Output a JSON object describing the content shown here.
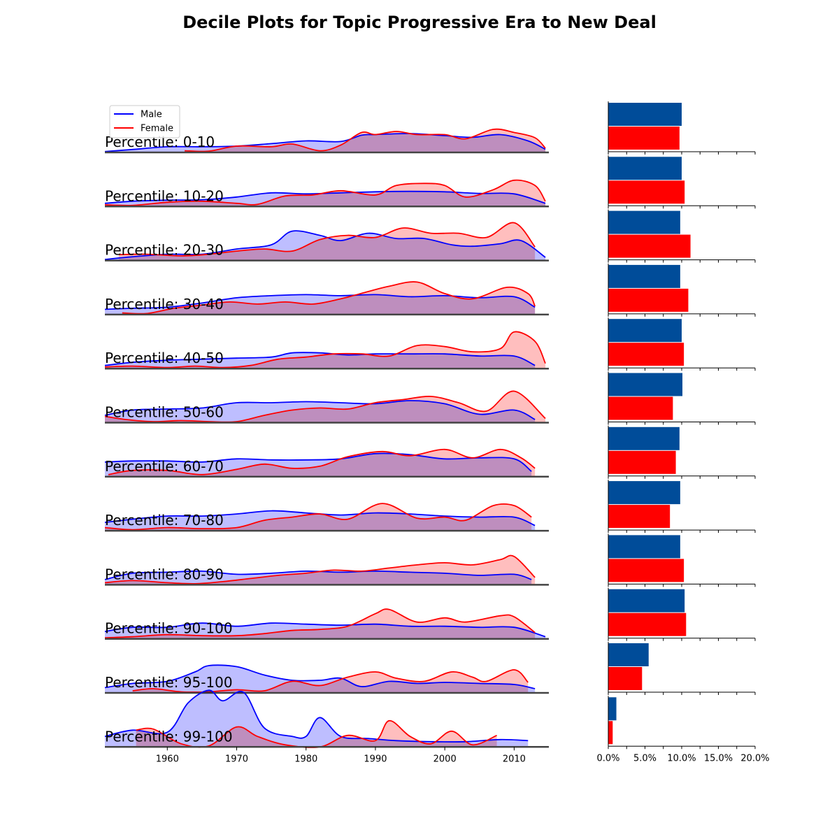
{
  "title": "Decile Plots for Topic Progressive Era to New Deal",
  "chart_data": {
    "type": "area",
    "title": "Decile Plots for Topic Progressive Era to New Deal",
    "legend": {
      "placement": "top-left",
      "entries": [
        "Male",
        "Female"
      ]
    },
    "colors": {
      "male_line": "#0000ff",
      "male_fill": "#bbbbff",
      "female_line": "#ff0000",
      "female_fill": "#ffbbbb",
      "male_bar": "#004c99",
      "female_bar": "#ff0000",
      "baseline": "#444444"
    },
    "x_axis": {
      "ticks": [
        1960,
        1970,
        1980,
        1990,
        2000,
        2010
      ],
      "range": [
        1951,
        2015
      ]
    },
    "bar_axis": {
      "ticks": [
        "0.0%",
        "5.0%",
        "10.0%",
        "15.0%",
        "20.0%"
      ],
      "range": [
        0,
        20
      ]
    },
    "series_names": [
      "Male",
      "Female"
    ],
    "rows": [
      {
        "label": "Percentile: 0-10",
        "male": {
          "x": [
            1951,
            1955,
            1960,
            1965,
            1970,
            1975,
            1980,
            1985,
            1988,
            1990,
            1995,
            2000,
            2004,
            2008,
            2012,
            2014.5
          ],
          "y": [
            0.04,
            0.14,
            0.27,
            0.27,
            0.3,
            0.42,
            0.55,
            0.52,
            0.82,
            0.85,
            0.9,
            0.8,
            0.72,
            0.85,
            0.55,
            0.15
          ]
        },
        "female": {
          "x": [
            1962.5,
            1966,
            1970,
            1975,
            1978,
            1982,
            1985,
            1988,
            1990,
            1993,
            1996,
            2000,
            2003,
            2007,
            2010,
            2013,
            2014.5
          ],
          "y": [
            0.08,
            0.06,
            0.3,
            0.27,
            0.4,
            0.08,
            0.35,
            0.95,
            0.85,
            1.0,
            0.85,
            0.85,
            0.65,
            1.1,
            0.95,
            0.7,
            0.2
          ]
        },
        "bar_male": 10.0,
        "bar_female": 9.7
      },
      {
        "label": "Percentile: 10-20",
        "male": {
          "x": [
            1951,
            1955,
            1960,
            1965,
            1970,
            1975,
            1980,
            1985,
            1990,
            1995,
            2000,
            2005,
            2010,
            2014.5
          ],
          "y": [
            0.15,
            0.25,
            0.3,
            0.32,
            0.45,
            0.65,
            0.6,
            0.65,
            0.7,
            0.72,
            0.7,
            0.62,
            0.6,
            0.15
          ]
        },
        "female": {
          "x": [
            1951,
            1955,
            1960,
            1965,
            1970,
            1973,
            1977,
            1981,
            1985,
            1990,
            1993,
            1997,
            2000,
            2003,
            2007,
            2010,
            2013,
            2014.5
          ],
          "y": [
            0.08,
            0.05,
            0.2,
            0.25,
            0.15,
            0.1,
            0.5,
            0.55,
            0.75,
            0.55,
            1.0,
            1.1,
            1.0,
            0.45,
            0.8,
            1.25,
            1.0,
            0.25
          ]
        },
        "bar_male": 10.0,
        "bar_female": 10.4
      },
      {
        "label": "Percentile: 20-30",
        "male": {
          "x": [
            1951,
            1955,
            1960,
            1965,
            1970,
            1975,
            1978,
            1982,
            1985,
            1989,
            1993,
            1997,
            2001,
            2004,
            2008,
            2011,
            2014.5
          ],
          "y": [
            0.05,
            0.18,
            0.3,
            0.3,
            0.55,
            0.75,
            1.4,
            1.2,
            0.95,
            1.3,
            1.05,
            1.05,
            0.75,
            0.68,
            0.8,
            0.95,
            0.15
          ]
        },
        "female": {
          "x": [
            1953,
            1957,
            1962,
            1966,
            1970,
            1974,
            1978,
            1982,
            1986,
            1990,
            1994,
            1998,
            2002,
            2006,
            2010,
            2013
          ],
          "y": [
            0.28,
            0.3,
            0.22,
            0.3,
            0.45,
            0.55,
            0.45,
            1.0,
            1.2,
            1.1,
            1.55,
            1.3,
            1.3,
            1.1,
            1.8,
            0.65
          ]
        },
        "bar_male": 9.8,
        "bar_female": 11.2
      },
      {
        "label": "Percentile: 30-40",
        "male": {
          "x": [
            1951,
            1955,
            1960,
            1965,
            1970,
            1975,
            1980,
            1985,
            1990,
            1995,
            2000,
            2005,
            2010,
            2013
          ],
          "y": [
            0.25,
            0.3,
            0.35,
            0.55,
            0.8,
            0.9,
            0.95,
            0.9,
            0.95,
            0.85,
            0.9,
            0.8,
            0.85,
            0.35
          ]
        },
        "female": {
          "x": [
            1953.5,
            1957,
            1961,
            1965,
            1969,
            1973,
            1977,
            1981,
            1985,
            1989,
            1992,
            1996,
            2000,
            2004,
            2009,
            2012,
            2013
          ],
          "y": [
            0.08,
            0.05,
            0.3,
            0.45,
            0.6,
            0.5,
            0.6,
            0.5,
            0.75,
            1.1,
            1.35,
            1.55,
            1.0,
            0.75,
            1.3,
            1.0,
            0.4
          ]
        },
        "bar_male": 9.8,
        "bar_female": 10.9
      },
      {
        "label": "Percentile: 40-50",
        "male": {
          "x": [
            1951,
            1955,
            1960,
            1965,
            1970,
            1975,
            1978,
            1982,
            1986,
            1990,
            1995,
            2000,
            2005,
            2010,
            2013
          ],
          "y": [
            0.15,
            0.3,
            0.4,
            0.45,
            0.5,
            0.55,
            0.75,
            0.75,
            0.65,
            0.7,
            0.7,
            0.7,
            0.6,
            0.6,
            0.15
          ]
        },
        "female": {
          "x": [
            1951,
            1955,
            1960,
            1964,
            1968,
            1972,
            1976,
            1980,
            1984,
            1988,
            1992,
            1996,
            2000,
            2004,
            2008,
            2010,
            2013,
            2014.5
          ],
          "y": [
            0.08,
            0.12,
            0.05,
            0.12,
            0.05,
            0.15,
            0.45,
            0.55,
            0.7,
            0.7,
            0.6,
            1.1,
            1.05,
            0.8,
            0.95,
            1.75,
            1.3,
            0.25
          ]
        },
        "bar_male": 10.0,
        "bar_female": 10.3
      },
      {
        "label": "Percentile: 50-60",
        "male": {
          "x": [
            1951,
            1955,
            1960,
            1965,
            1970,
            1975,
            1980,
            1985,
            1990,
            1995,
            2000,
            2005,
            2010,
            2013
          ],
          "y": [
            0.35,
            0.6,
            0.65,
            0.7,
            0.95,
            0.95,
            1.0,
            0.95,
            0.9,
            1.05,
            0.9,
            0.4,
            0.6,
            0.15
          ]
        },
        "female": {
          "x": [
            1951,
            1954,
            1958,
            1962,
            1966,
            1970,
            1974,
            1978,
            1982,
            1986,
            1990,
            1994,
            1998,
            2002,
            2006,
            2010,
            2014.5
          ],
          "y": [
            0.3,
            0.15,
            0.05,
            0.1,
            0.05,
            0.05,
            0.35,
            0.6,
            0.7,
            0.65,
            0.95,
            1.1,
            1.25,
            0.95,
            0.55,
            1.5,
            0.2
          ]
        },
        "bar_male": 10.1,
        "bar_female": 8.8
      },
      {
        "label": "Percentile: 60-70",
        "male": {
          "x": [
            1951,
            1955,
            1960,
            1965,
            1970,
            1975,
            1980,
            1985,
            1990,
            1995,
            2000,
            2005,
            2010,
            2012.5
          ],
          "y": [
            0.7,
            0.75,
            0.75,
            0.7,
            0.85,
            0.8,
            0.8,
            0.85,
            1.1,
            1.05,
            0.85,
            0.9,
            0.85,
            0.25
          ]
        },
        "female": {
          "x": [
            1951.5,
            1955,
            1960,
            1965,
            1970,
            1974,
            1978,
            1982,
            1986,
            1991,
            1995,
            2000,
            2004,
            2008,
            2011,
            2013
          ],
          "y": [
            0.1,
            0.3,
            0.3,
            0.1,
            0.35,
            0.6,
            0.4,
            0.5,
            0.95,
            1.2,
            1.0,
            1.3,
            0.9,
            1.3,
            0.9,
            0.4
          ]
        },
        "bar_male": 9.7,
        "bar_female": 9.2
      },
      {
        "label": "Percentile: 70-80",
        "male": {
          "x": [
            1951,
            1955,
            1960,
            1965,
            1970,
            1975,
            1980,
            1985,
            1990,
            1995,
            2000,
            2005,
            2010,
            2013
          ],
          "y": [
            0.4,
            0.55,
            0.7,
            0.7,
            0.8,
            0.95,
            0.85,
            0.75,
            0.85,
            0.8,
            0.7,
            0.65,
            0.65,
            0.25
          ]
        },
        "female": {
          "x": [
            1951,
            1955,
            1960,
            1965,
            1970,
            1974,
            1978,
            1982,
            1986,
            1991,
            1996,
            2000,
            2003,
            2007,
            2010,
            2012.5
          ],
          "y": [
            0.15,
            0.05,
            0.15,
            0.1,
            0.15,
            0.5,
            0.65,
            0.8,
            0.55,
            1.3,
            0.6,
            0.65,
            0.5,
            1.2,
            1.2,
            0.65
          ]
        },
        "bar_male": 9.8,
        "bar_female": 8.4
      },
      {
        "label": "Percentile: 80-90",
        "male": {
          "x": [
            1951,
            1955,
            1960,
            1965,
            1970,
            1975,
            1980,
            1985,
            1990,
            1995,
            2000,
            2005,
            2010,
            2012.5
          ],
          "y": [
            0.25,
            0.55,
            0.6,
            0.65,
            0.5,
            0.55,
            0.65,
            0.6,
            0.65,
            0.6,
            0.55,
            0.45,
            0.5,
            0.25
          ]
        },
        "female": {
          "x": [
            1951,
            1955,
            1960,
            1964,
            1968,
            1972,
            1976,
            1980,
            1984,
            1988,
            1992,
            1996,
            2000,
            2004,
            2008,
            2010,
            2013
          ],
          "y": [
            0.1,
            0.2,
            0.1,
            0.05,
            0.15,
            0.3,
            0.45,
            0.55,
            0.7,
            0.65,
            0.8,
            0.95,
            1.05,
            0.95,
            1.2,
            1.35,
            0.35
          ]
        },
        "bar_male": 9.8,
        "bar_female": 10.3
      },
      {
        "label": "Percentile: 90-100",
        "male": {
          "x": [
            1951,
            1955,
            1960,
            1965,
            1970,
            1975,
            1980,
            1985,
            1990,
            1995,
            2000,
            2005,
            2010,
            2014.5
          ],
          "y": [
            0.35,
            0.55,
            0.55,
            0.75,
            0.6,
            0.75,
            0.7,
            0.65,
            0.7,
            0.6,
            0.6,
            0.55,
            0.55,
            0.1
          ]
        },
        "female": {
          "x": [
            1951,
            1955,
            1960,
            1965,
            1970,
            1974,
            1978,
            1982,
            1986,
            1990,
            1992,
            1996,
            2000,
            2003,
            2008,
            2010,
            2013
          ],
          "y": [
            0.05,
            0.1,
            0.2,
            0.15,
            0.15,
            0.25,
            0.4,
            0.45,
            0.6,
            1.2,
            1.4,
            0.8,
            1.0,
            0.8,
            1.1,
            1.05,
            0.3
          ]
        },
        "bar_male": 10.4,
        "bar_female": 10.6
      },
      {
        "label": "Percentile: 95-100",
        "male": {
          "x": [
            1951,
            1955,
            1960,
            1964,
            1966,
            1970,
            1974,
            1978,
            1982,
            1985,
            1988,
            1992,
            1996,
            2000,
            2005,
            2010,
            2013
          ],
          "y": [
            0.25,
            0.45,
            0.55,
            1.0,
            1.3,
            1.25,
            0.85,
            0.6,
            0.6,
            0.7,
            0.3,
            0.55,
            0.45,
            0.5,
            0.45,
            0.4,
            0.2
          ]
        },
        "female": {
          "x": [
            1955,
            1958,
            1962,
            1966,
            1970,
            1974,
            1978,
            1982,
            1986,
            1990,
            1993,
            1997,
            2001,
            2004,
            2006,
            2010,
            2012
          ],
          "y": [
            0.1,
            0.2,
            0.05,
            0.05,
            0.15,
            0.1,
            0.55,
            0.35,
            0.75,
            1.0,
            0.7,
            0.55,
            1.0,
            0.75,
            0.55,
            1.1,
            0.5
          ]
        },
        "bar_male": 5.5,
        "bar_female": 4.6
      },
      {
        "label": "Percentile: 99-100",
        "male": {
          "x": [
            1951,
            1955,
            1960,
            1963,
            1966,
            1968,
            1971,
            1974,
            1978,
            1980,
            1982,
            1985,
            1989,
            1993,
            1998,
            2003,
            2008,
            2012
          ],
          "y": [
            0.5,
            0.8,
            0.7,
            2.1,
            2.7,
            2.2,
            2.6,
            0.9,
            0.5,
            0.5,
            1.4,
            0.5,
            0.4,
            0.3,
            0.25,
            0.25,
            0.35,
            0.3
          ]
        },
        "female": {
          "x": [
            1955.5,
            1958,
            1962,
            1966,
            1970,
            1973,
            1977,
            1982,
            1986,
            1990,
            1992,
            1995,
            1998,
            2001,
            2004,
            2007.5
          ],
          "y": [
            0.8,
            0.85,
            0.15,
            0.05,
            0.95,
            0.5,
            0.1,
            0.0,
            0.55,
            0.3,
            1.25,
            0.5,
            0.15,
            0.75,
            0.1,
            0.55
          ]
        },
        "bar_male": 1.1,
        "bar_female": 0.6
      }
    ]
  }
}
